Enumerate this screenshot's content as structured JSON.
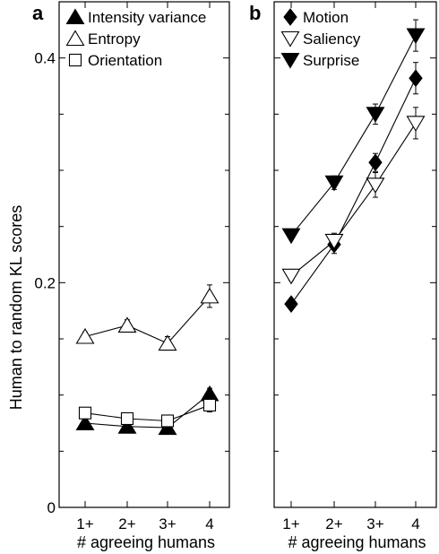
{
  "chart_data": {
    "ylabel": "Human to random KL scores",
    "ylim": [
      0,
      0.45
    ],
    "ytick_labels": [
      "0",
      "0.2",
      "0.4"
    ],
    "ytick_values": [
      0,
      0.2,
      0.4
    ],
    "panels": [
      {
        "letter": "a",
        "type": "line",
        "xlabel": "# agreeing humans",
        "categories": [
          "1+",
          "2+",
          "3+",
          "4"
        ],
        "grid": false,
        "legend_position": "top-left",
        "series": [
          {
            "name": "Intensity variance",
            "marker": "triangle-up",
            "fill": "#000000",
            "values": [
              0.075,
              0.072,
              0.071,
              0.101
            ],
            "errors": [
              0.003,
              0.003,
              0.003,
              0.005
            ]
          },
          {
            "name": "Entropy",
            "marker": "triangle-up",
            "fill": "#ffffff",
            "values": [
              0.152,
              0.162,
              0.146,
              0.188
            ],
            "errors": [
              0.004,
              0.005,
              0.006,
              0.01
            ]
          },
          {
            "name": "Orientation",
            "marker": "square",
            "fill": "#ffffff",
            "values": [
              0.084,
              0.079,
              0.077,
              0.091
            ],
            "errors": [
              0.003,
              0.003,
              0.003,
              0.006
            ]
          }
        ]
      },
      {
        "letter": "b",
        "type": "line",
        "xlabel": "# agreeing humans",
        "categories": [
          "1+",
          "2+",
          "3+",
          "4"
        ],
        "grid": false,
        "legend_position": "top-left",
        "series": [
          {
            "name": "Motion",
            "marker": "diamond",
            "fill": "#000000",
            "values": [
              0.181,
              0.234,
              0.307,
              0.382
            ],
            "errors": [
              0.003,
              0.008,
              0.008,
              0.014
            ]
          },
          {
            "name": "Saliency",
            "marker": "triangle-down",
            "fill": "#ffffff",
            "values": [
              0.206,
              0.237,
              0.287,
              0.342
            ],
            "errors": [
              0.004,
              0.007,
              0.011,
              0.014
            ]
          },
          {
            "name": "Surprise",
            "marker": "triangle-down",
            "fill": "#000000",
            "values": [
              0.242,
              0.289,
              0.35,
              0.42
            ],
            "errors": [
              0.003,
              0.006,
              0.009,
              0.014
            ]
          }
        ]
      }
    ]
  }
}
